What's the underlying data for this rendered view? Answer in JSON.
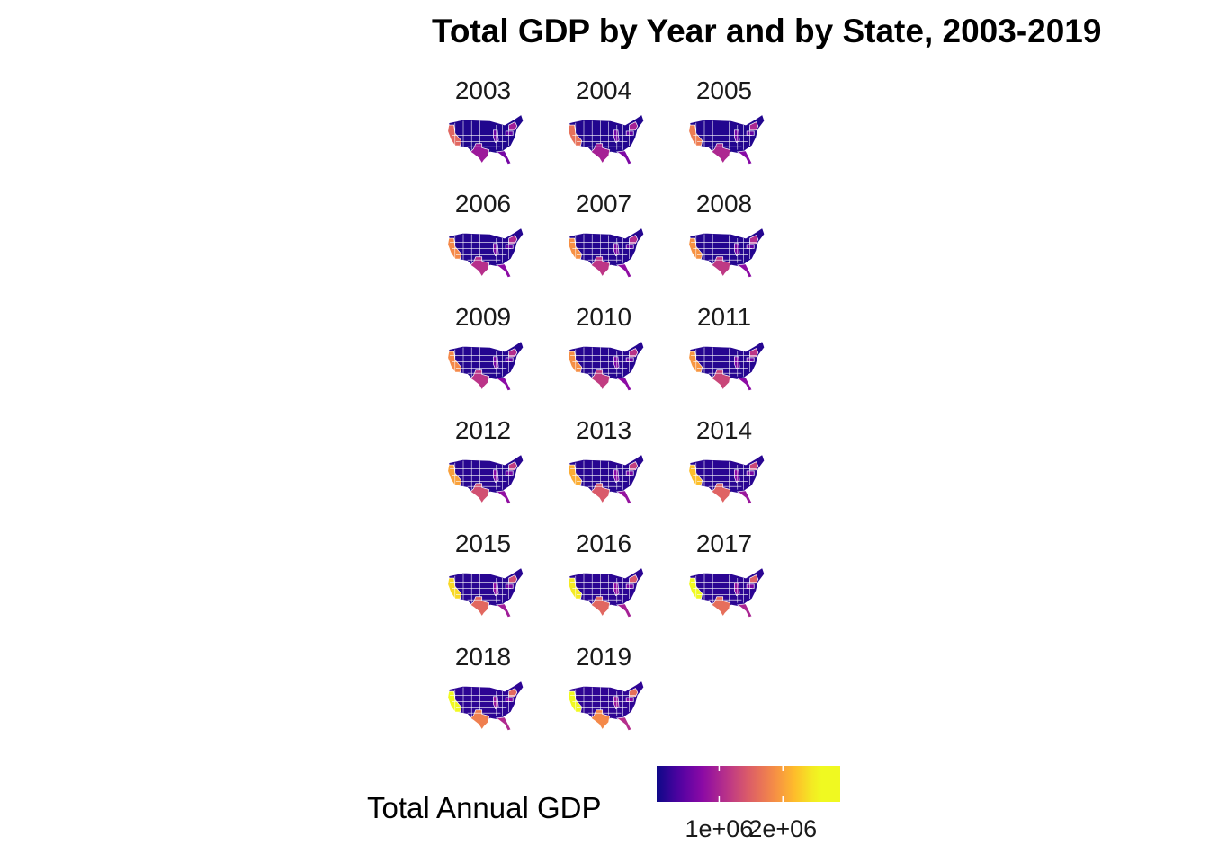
{
  "chart_data": {
    "type": "choropleth-facets",
    "title": "Total GDP by Year and by State, 2003-2019",
    "facets": [
      {
        "year": "2003",
        "CA": 1550000.0,
        "TX": 880000.0,
        "NY": 920000.0,
        "FL": 600000.0,
        "IL": 530000.0,
        "PA": 450000.0,
        "other": 120000.0
      },
      {
        "year": "2004",
        "CA": 1640000.0,
        "TX": 950000.0,
        "NY": 960000.0,
        "FL": 650000.0,
        "IL": 550000.0,
        "PA": 470000.0,
        "other": 130000.0
      },
      {
        "year": "2005",
        "CA": 1740000.0,
        "TX": 1020000.0,
        "NY": 1000000.0,
        "FL": 710000.0,
        "IL": 570000.0,
        "PA": 490000.0,
        "other": 130000.0
      },
      {
        "year": "2006",
        "CA": 1840000.0,
        "TX": 1090000.0,
        "NY": 1040000.0,
        "FL": 750000.0,
        "IL": 600000.0,
        "PA": 500000.0,
        "other": 140000.0
      },
      {
        "year": "2007",
        "CA": 1890000.0,
        "TX": 1150000.0,
        "NY": 1060000.0,
        "FL": 770000.0,
        "IL": 620000.0,
        "PA": 510000.0,
        "other": 140000.0
      },
      {
        "year": "2008",
        "CA": 1900000.0,
        "TX": 1170000.0,
        "NY": 1060000.0,
        "FL": 760000.0,
        "IL": 630000.0,
        "PA": 520000.0,
        "other": 140000.0
      },
      {
        "year": "2009",
        "CA": 1840000.0,
        "TX": 1130000.0,
        "NY": 1070000.0,
        "FL": 740000.0,
        "IL": 620000.0,
        "PA": 520000.0,
        "other": 140000.0
      },
      {
        "year": "2010",
        "CA": 1880000.0,
        "TX": 1200000.0,
        "NY": 1110000.0,
        "FL": 750000.0,
        "IL": 640000.0,
        "PA": 540000.0,
        "other": 150000.0
      },
      {
        "year": "2011",
        "CA": 1930000.0,
        "TX": 1280000.0,
        "NY": 1140000.0,
        "FL": 760000.0,
        "IL": 660000.0,
        "PA": 550000.0,
        "other": 150000.0
      },
      {
        "year": "2012",
        "CA": 2000000.0,
        "TX": 1360000.0,
        "NY": 1200000.0,
        "FL": 790000.0,
        "IL": 690000.0,
        "PA": 570000.0,
        "other": 160000.0
      },
      {
        "year": "2013",
        "CA": 2080000.0,
        "TX": 1440000.0,
        "NY": 1220000.0,
        "FL": 820000.0,
        "IL": 710000.0,
        "PA": 590000.0,
        "other": 160000.0
      },
      {
        "year": "2014",
        "CA": 2200000.0,
        "TX": 1520000.0,
        "NY": 1290000.0,
        "FL": 860000.0,
        "IL": 740000.0,
        "PA": 610000.0,
        "other": 170000.0
      },
      {
        "year": "2015",
        "CA": 2350000.0,
        "TX": 1560000.0,
        "NY": 1350000.0,
        "FL": 910000.0,
        "IL": 770000.0,
        "PA": 630000.0,
        "other": 170000.0
      },
      {
        "year": "2016",
        "CA": 2460000.0,
        "TX": 1550000.0,
        "NY": 1420000.0,
        "FL": 950000.0,
        "IL": 780000.0,
        "PA": 640000.0,
        "other": 180000.0
      },
      {
        "year": "2017",
        "CA": 2600000.0,
        "TX": 1620000.0,
        "NY": 1490000.0,
        "FL": 990000.0,
        "IL": 810000.0,
        "PA": 660000.0,
        "other": 180000.0
      },
      {
        "year": "2018",
        "CA": 2770000.0,
        "TX": 1760000.0,
        "NY": 1570000.0,
        "FL": 1040000.0,
        "IL": 860000.0,
        "PA": 700000.0,
        "other": 190000.0
      },
      {
        "year": "2019",
        "CA": 2900000.0,
        "TX": 1840000.0,
        "NY": 1620000.0,
        "FL": 1080000.0,
        "IL": 880000.0,
        "PA": 720000.0,
        "other": 200000.0
      }
    ],
    "legend": {
      "title": "Total Annual GDP",
      "position": "bottom",
      "palette": "plasma",
      "min": 20000.0,
      "max": 2900000.0,
      "ticks": [
        {
          "value": 1000000.0,
          "label": "1e+06"
        },
        {
          "value": 2000000.0,
          "label": "2e+06"
        }
      ]
    }
  }
}
